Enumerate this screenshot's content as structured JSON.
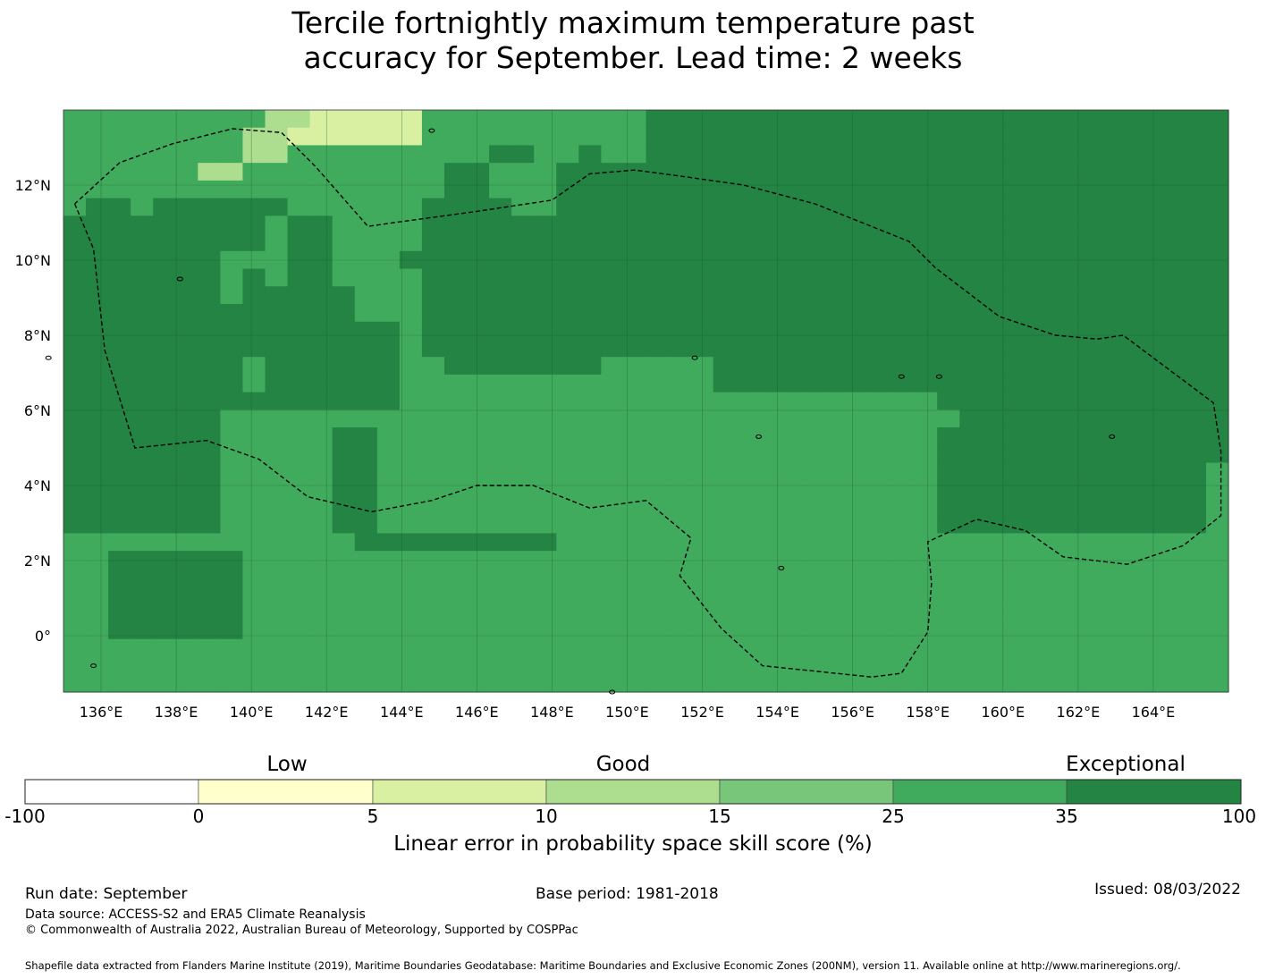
{
  "title_line1": "Tercile fortnightly maximum temperature past",
  "title_line2": "accuracy for September. Lead time: 2 weeks",
  "map": {
    "lon_range": [
      135,
      166
    ],
    "lat_range": [
      -1.5,
      14
    ],
    "lon_ticks": [
      "136°E",
      "138°E",
      "140°E",
      "142°E",
      "144°E",
      "146°E",
      "148°E",
      "150°E",
      "152°E",
      "154°E",
      "156°E",
      "158°E",
      "160°E",
      "162°E",
      "164°E"
    ],
    "lat_ticks": [
      "12°N",
      "10°N",
      "8°N",
      "6°N",
      "4°N",
      "2°N",
      "0°"
    ],
    "grid_rows": [
      "4444444443322222444444444455555555555555555555555555",
      "4444444433222222444444444455555555555555555555555555",
      "4444444433444444444554454455555555555555555555555555",
      "4444443344444444455444555555555555555555555555555555",
      "4444444444444444455444555555555555555555555555555555",
      "4554555555444444555544555555555555555555555555555555",
      "5555555554554444555555555555555555555555555555555555",
      "5555555554554444555555555555555555555555555555555555",
      "5555555444554445555555555555555555555555555555555555",
      "5555555454554444555555555555555555555555555555555555",
      "5555555455555444555555555555555555555555555555555555",
      "5555555555555444555555555555555555555555555555555555",
      "5555555555555554555555555555555555555555555555555555",
      "5555555555555554555555555555555555555555555555555555",
      "5555555545555554455555554444455555555555555555555555",
      "5555555545555554444444444444455555555555555555555555",
      "5555555555555554444444444444444444444445555555555555",
      "5555555444444444444444444444444444444444555555555555",
      "5555555444445544444444444444444444444445555555555555",
      "5555555444445544444444444444444444444445555555555555",
      "5555555444445544444444444444444444444445555555555554",
      "5555555444445544444444444444444444444445555555555554",
      "5555555444445544444444444444444444444445555555555554",
      "5555555444445544444444444444444444444445555555555554",
      "4444444444444555555555444444444444444444444444444444",
      "4455555544444444444444444444444444444444444444444444",
      "4455555544444444444444444444444444444444444444444444",
      "4455555544444444444444444444444444444444444444444444",
      "4455555544444444444444444444444444444444444444444444",
      "4455555544444444444444444444444444444444444444444444",
      "4444444444444444444444444444444444444444444444444444",
      "4444444444444444444444444444444444444444444444444444",
      "4444444444444444444444444444444444444444444444444444"
    ],
    "palette": {
      "1": "#ffffcc",
      "2": "#d9f0a3",
      "3": "#addd8e",
      "4": "#41ab5d",
      "5": "#238443"
    },
    "eez_outline_color": "#000000",
    "coastline_color": "#000000"
  },
  "colorbar": {
    "words": [
      "Low",
      "Good",
      "Exceptional"
    ],
    "ticks": [
      "-100",
      "0",
      "5",
      "10",
      "15",
      "25",
      "35",
      "100"
    ],
    "colors": [
      "#ffffff",
      "#ffffcc",
      "#d9f0a3",
      "#addd8e",
      "#78c679",
      "#41ab5d",
      "#238443"
    ],
    "label": "Linear error in probability space skill score (%)"
  },
  "footer": {
    "run_date": "Run date: September",
    "base_period": "Base period: 1981-2018",
    "issued": "Issued: 08/03/2022",
    "data_source": "Data source: ACCESS-S2 and ERA5 Climate Reanalysis",
    "copyright": "© Commonwealth of Australia 2022, Australian Bureau of Meteorology, Supported by COSPPac",
    "shapefile": "Shapefile data extracted from Flanders Marine Institute (2019), Maritime Boundaries Geodatabase: Maritime Boundaries and Exclusive Economic Zones (200NM), version 11. Available online at http://www.marineregions.org/."
  }
}
